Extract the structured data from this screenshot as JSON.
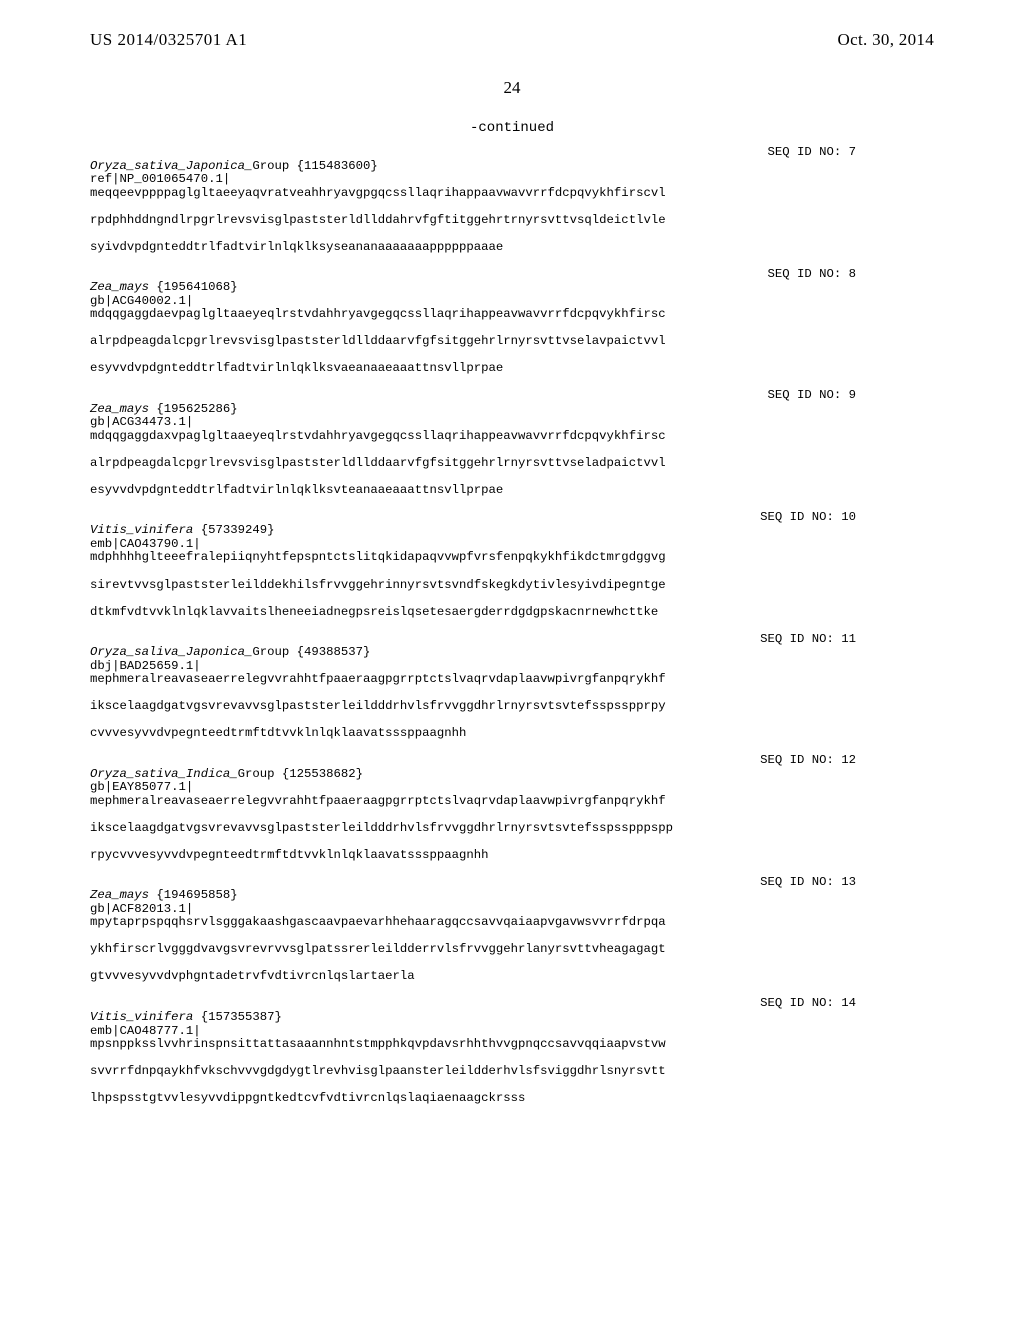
{
  "header": {
    "left": "US 2014/0325701 A1",
    "right": "Oct. 30, 2014"
  },
  "page_number": "24",
  "continued_label": "-continued",
  "entries": [
    {
      "seq_id": "SEQ ID NO: 7",
      "species": "Oryza_sativa_Japonica_",
      "species_suffix": "Group {115483600}",
      "ref_line": "ref|NP_001065470.1|",
      "lines": [
        "meqqeevppppaglgltaeeyaqvratveahhryavgpgqcssllaqrihappaavwavvrrfdcpqvykhfirscvl",
        "rpdphhddngndlrpgrlrevsvisglpaststerldllddahrvfgftitggehrtrnyrsvttvsqldeictlvle",
        "syivdvpdgnteddtrlfadtvirlnlqklksyseananaaaaaaappppppaaae"
      ]
    },
    {
      "seq_id": "SEQ ID NO: 8",
      "species": "Zea_mays ",
      "species_suffix": "{195641068}",
      "ref_line": "gb|ACG40002.1|",
      "lines": [
        "mdqqgaggdaevpaglgltaaeyeqlrstvdahhryavgegqcssllaqrihappeavwavvrrfdcpqvykhfirsc",
        "alrpdpeagdalcpgrlrevsvisglpaststerldllddaarvfgfsitggehrlrnyrsvttvselavpaictvvl",
        "esyvvdvpdgnteddtrlfadtvirlnlqklksvaeanaaeaaattnsvllprpae"
      ]
    },
    {
      "seq_id": "SEQ ID NO: 9",
      "species": "Zea_mays ",
      "species_suffix": "{195625286}",
      "ref_line": "gb|ACG34473.1|",
      "lines": [
        "mdqqgaggdaxvpaglgltaaeyeqlrstvdahhryavgegqcssllaqrihappeavwavvrrfdcpqvykhfirsc",
        "alrpdpeagdalcpgrlrevsvisglpaststerldllddaarvfgfsitggehrlrnyrsvttvseladpaictvvl",
        "esyvvdvpdgnteddtrlfadtvirlnlqklksvteanaaeaaattnsvllprpae"
      ]
    },
    {
      "seq_id": "SEQ ID NO: 10",
      "species": "Vitis_vinifera ",
      "species_suffix": "{57339249}",
      "ref_line": "emb|CAO43790.1|",
      "lines": [
        "mdphhhhglteeefralepiiqnyhtfepspntctslitqkidapaqvvwpfvrsfenpqkykhfikdctmrgdggvg",
        "sirevtvvsglpaststerleilddekhilsfrvvggehrinnyrsvtsvndfskegkdytivlesyivdipegntge",
        "dtkmfvdtvvklnlqklavvaitslheneeiadnegpsreislqsetesaergderrdgdgpskacnrnewhcttke"
      ]
    },
    {
      "seq_id": "SEQ ID NO: 11",
      "species": "Oryza_saliva_Japonica_",
      "species_suffix": "Group {49388537}",
      "ref_line": "dbj|BAD25659.1|",
      "lines": [
        "mephmeralreavaseaerrelegvvrahhtfpaaeraagpgrrptctslvaqrvdaplaavwpivrgfanpqrykhf",
        "ikscelaagdgatvgsvrevavvsglpaststerleildddrhvlsfrvvggdhrlrnyrsvtsvtefsspsspprpy",
        "cvvvesyvvdvpegnteedtrmftdtvvklnlqklaavatsssppaagnhh"
      ]
    },
    {
      "seq_id": "SEQ ID NO: 12",
      "species": "Oryza_sativa_Indica_",
      "species_suffix": "Group {125538682}",
      "ref_line": "gb|EAY85077.1|",
      "lines": [
        "mephmeralreavaseaerrelegvvrahhtfpaaeraagpgrrptctslvaqrvdaplaavwpivrgfanpqrykhf",
        "ikscelaagdgatvgsvrevavvsglpaststerleildddrhvlsfrvvggdhrlrnyrsvtsvtefsspsspppspp",
        "rpycvvvesyvvdvpegnteedtrmftdtvvklnlqklaavatsssppaagnhh"
      ]
    },
    {
      "seq_id": "SEQ ID NO: 13",
      "species": "Zea_mays ",
      "species_suffix": "{194695858}",
      "ref_line": "gb|ACF82013.1|",
      "lines": [
        "mpytaprpspqqhsrvlsgggakaashgascaavpaevarhhehaaragqccsavvqaiaapvgavwsvvrrfdrpqa",
        "ykhfirscrlvgggdvavgsvrevrvvsglpatssrerleildderrvlsfrvvggehrlanyrsvttvheagagagt",
        "gtvvvesyvvdvphgntadetrvfvdtivrcnlqslartaerla"
      ]
    },
    {
      "seq_id": "SEQ ID NO: 14",
      "species": "Vitis_vinifera ",
      "species_suffix": "{157355387}",
      "ref_line": "emb|CAO48777.1|",
      "lines": [
        "mpsnppksslvvhrinspnsittattasaaannhntstmpphkqvpdavsrhhthvvgpnqccsavvqqiaapvstvw",
        "svvrrfdnpqaykhfvkschvvvgdgdygtlrevhvisglpaansterleildderhvlsfsviggdhrlsnyrsvtt",
        "lhpspsstgtvvlesyvvdippgntkedtcvfvdtivrcnlqslaqiaenaagckrsss"
      ]
    }
  ]
}
